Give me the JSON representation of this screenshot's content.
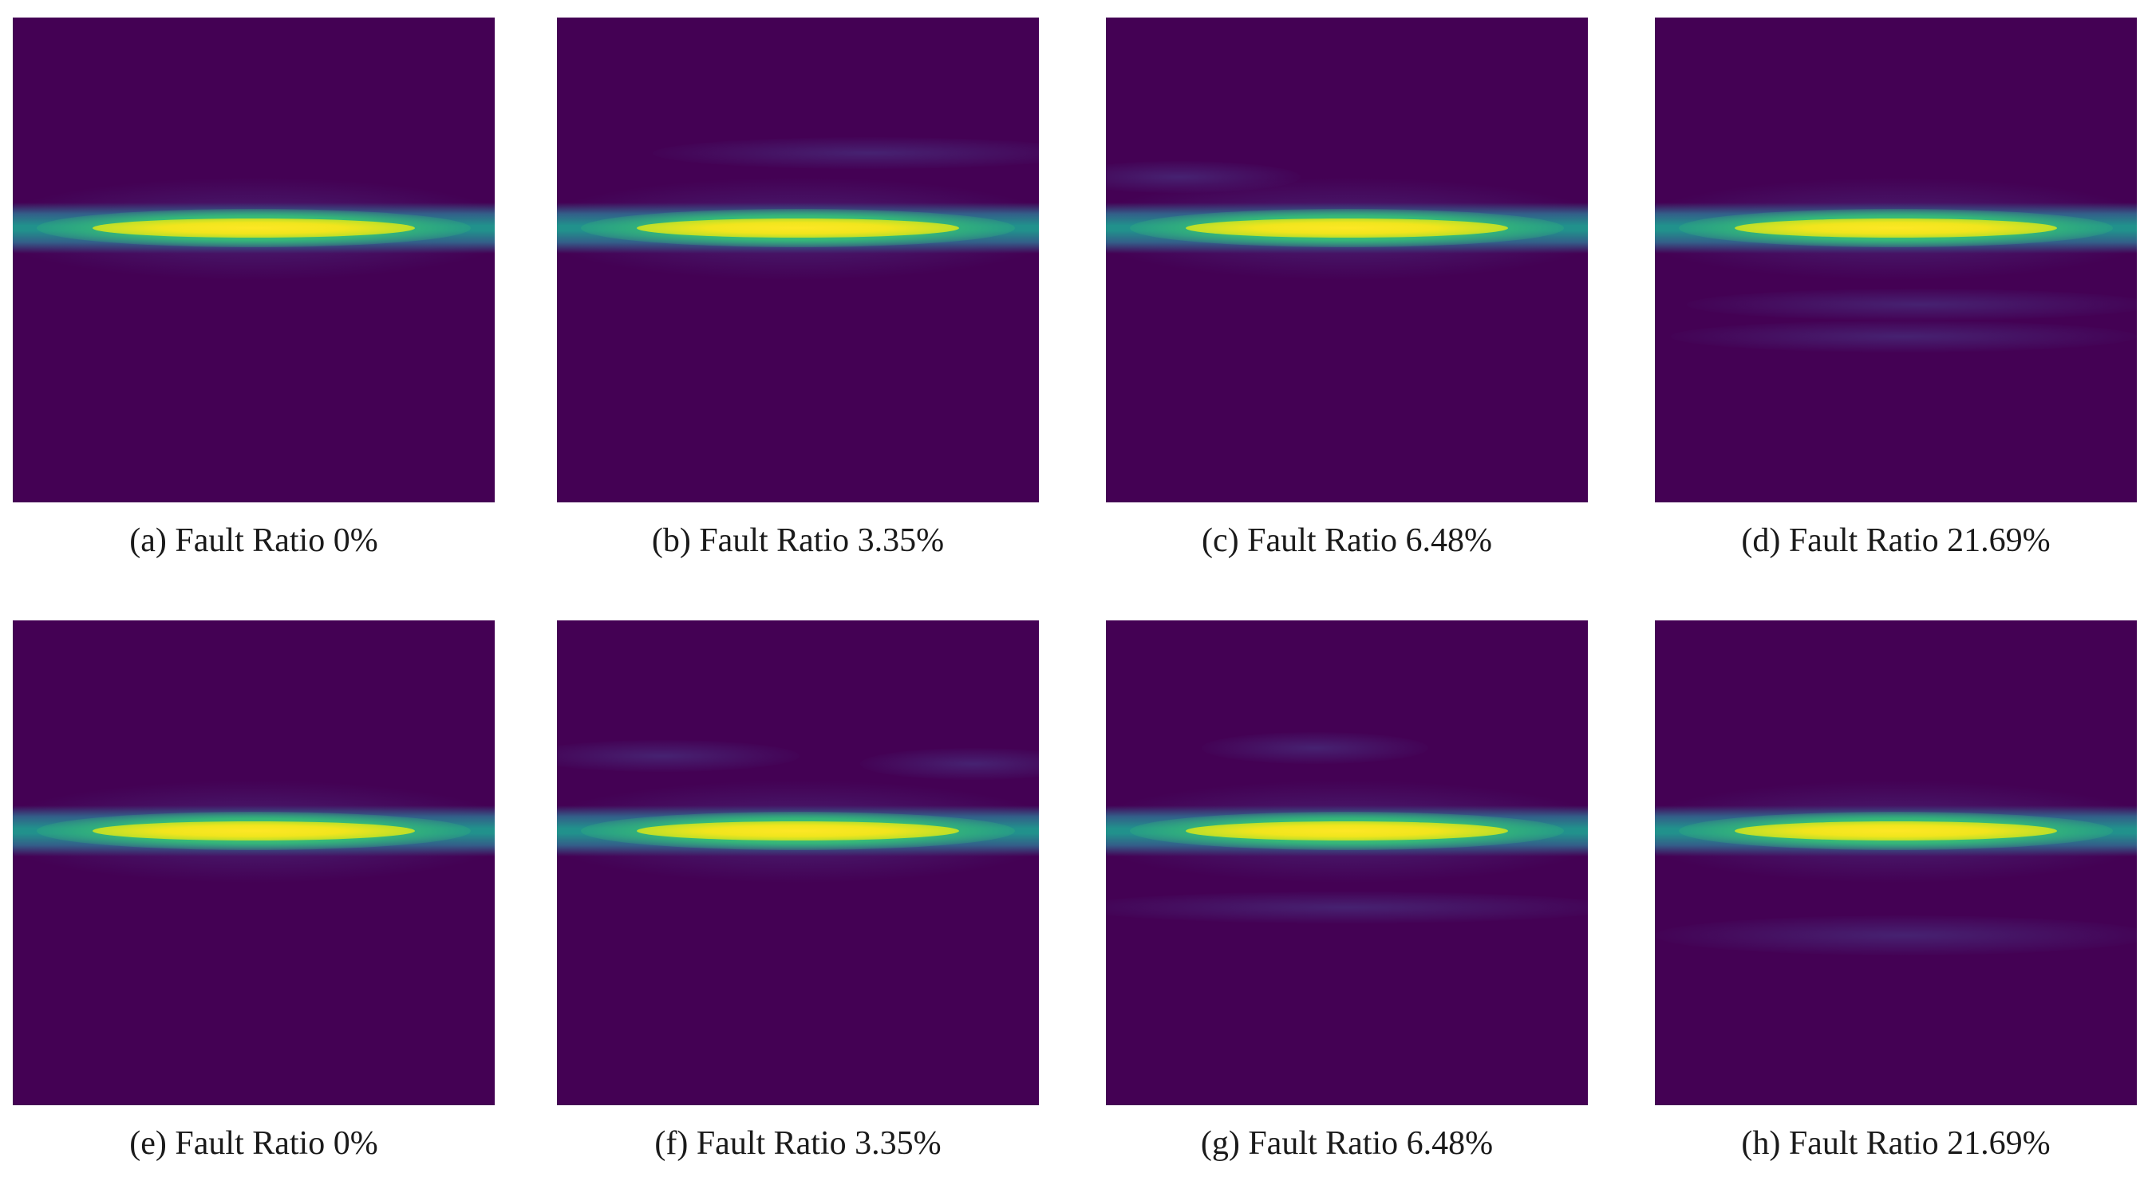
{
  "figure": {
    "panels": [
      {
        "caption": "(a) Fault Ratio 0%"
      },
      {
        "caption": "(b) Fault Ratio 3.35%"
      },
      {
        "caption": "(c) Fault Ratio 6.48%"
      },
      {
        "caption": "(d) Fault Ratio 21.69%"
      },
      {
        "caption": "(e) Fault Ratio 0%"
      },
      {
        "caption": "(f) Fault Ratio 3.35%"
      },
      {
        "caption": "(g) Fault Ratio 6.48%"
      },
      {
        "caption": "(h) Fault Ratio 21.69%"
      }
    ],
    "colors": {
      "background": "#440154",
      "low": "#31688e",
      "mid": "#35b779",
      "high": "#fde725"
    }
  }
}
